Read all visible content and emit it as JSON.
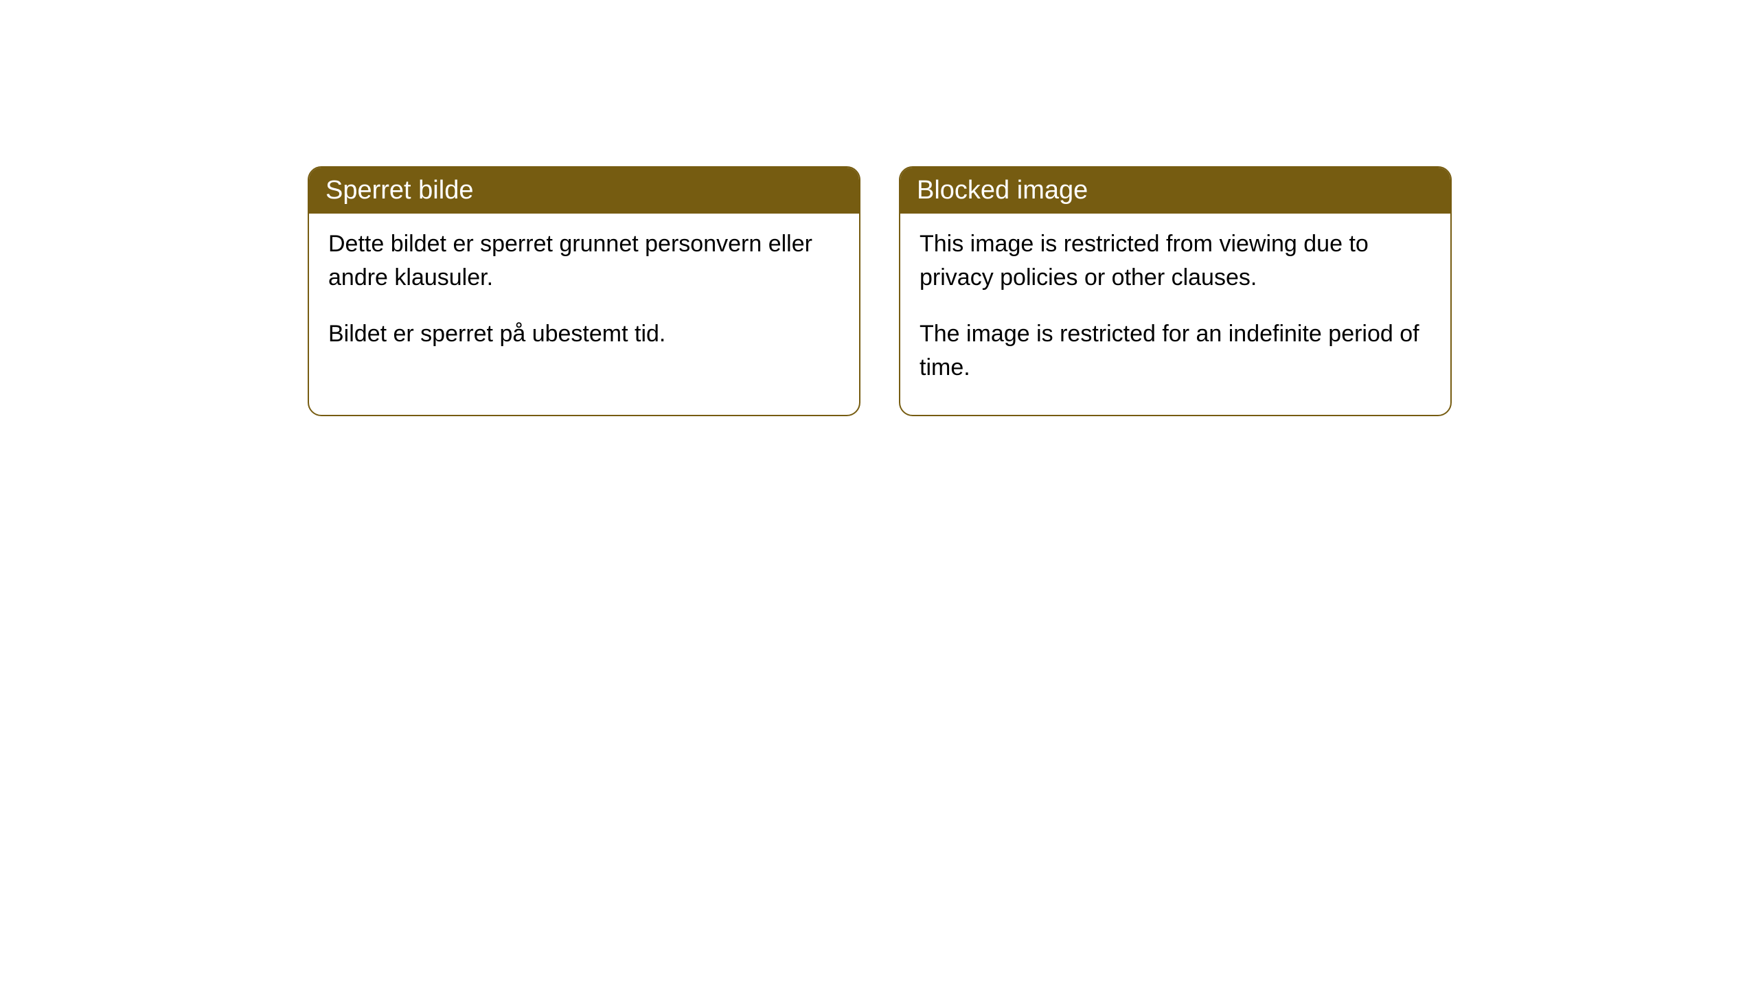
{
  "cards": [
    {
      "title": "Sperret bilde",
      "paragraph1": "Dette bildet er sperret grunnet personvern eller andre klausuler.",
      "paragraph2": "Bildet er sperret på ubestemt tid."
    },
    {
      "title": "Blocked image",
      "paragraph1": "This image is restricted from viewing due to privacy policies or other clauses.",
      "paragraph2": "The image is restricted for an indefinite period of time."
    }
  ],
  "styling": {
    "header_background": "#765c11",
    "header_text_color": "#ffffff",
    "border_color": "#765c11",
    "body_background": "#ffffff",
    "body_text_color": "#000000",
    "border_radius": 20,
    "header_fontsize": 38,
    "body_fontsize": 34
  }
}
